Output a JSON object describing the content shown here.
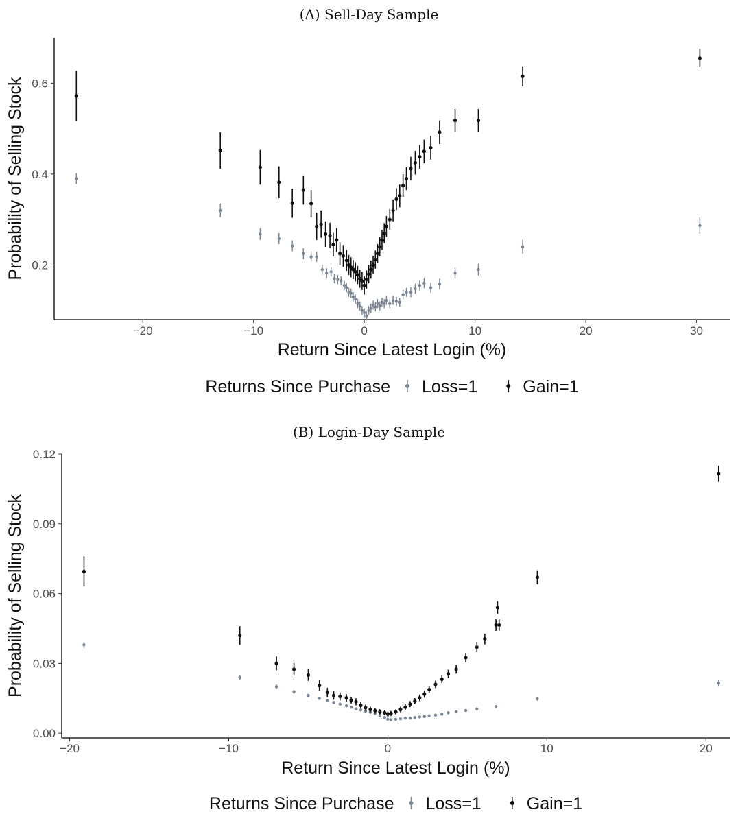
{
  "chart_data": [
    {
      "type": "scatter",
      "title": "(A) Sell-Day Sample",
      "xlabel": "Return Since Latest Login (%)",
      "ylabel": "Probability of Selling Stock",
      "xlim": [
        -28,
        33
      ],
      "ylim": [
        0.08,
        0.7
      ],
      "xticks": [
        -20,
        -10,
        0,
        10,
        20,
        30
      ],
      "xtick_labels": [
        "−20",
        "−10",
        "0",
        "10",
        "20",
        "30"
      ],
      "yticks": [
        0.2,
        0.4,
        0.6
      ],
      "ytick_labels": [
        "0.2",
        "0.4",
        "0.6"
      ],
      "grid": false,
      "legend": {
        "title": "Returns Since Purchase",
        "placement": "bottom",
        "entries": [
          "Loss=1",
          "Gain=1"
        ]
      },
      "series": [
        {
          "name": "Loss=1",
          "color": "#7a8694",
          "points": [
            [
              -26,
              0.39,
              0.012
            ],
            [
              -13,
              0.32,
              0.015
            ],
            [
              -9.4,
              0.268,
              0.013
            ],
            [
              -7.7,
              0.258,
              0.012
            ],
            [
              -6.5,
              0.242,
              0.012
            ],
            [
              -5.5,
              0.225,
              0.012
            ],
            [
              -4.8,
              0.218,
              0.011
            ],
            [
              -4.3,
              0.218,
              0.011
            ],
            [
              -3.8,
              0.19,
              0.011
            ],
            [
              -3.4,
              0.182,
              0.011
            ],
            [
              -3.0,
              0.185,
              0.01
            ],
            [
              -2.7,
              0.17,
              0.01
            ],
            [
              -2.4,
              0.168,
              0.01
            ],
            [
              -2.1,
              0.165,
              0.01
            ],
            [
              -1.8,
              0.155,
              0.01
            ],
            [
              -1.6,
              0.15,
              0.01
            ],
            [
              -1.4,
              0.14,
              0.01
            ],
            [
              -1.2,
              0.138,
              0.01
            ],
            [
              -1.0,
              0.13,
              0.01
            ],
            [
              -0.8,
              0.125,
              0.01
            ],
            [
              -0.6,
              0.115,
              0.01
            ],
            [
              -0.4,
              0.11,
              0.01
            ],
            [
              -0.2,
              0.1,
              0.01
            ],
            [
              0.0,
              0.095,
              0.01
            ],
            [
              0.2,
              0.088,
              0.01
            ],
            [
              0.4,
              0.1,
              0.01
            ],
            [
              0.6,
              0.105,
              0.01
            ],
            [
              0.8,
              0.112,
              0.01
            ],
            [
              1.0,
              0.108,
              0.01
            ],
            [
              1.2,
              0.115,
              0.01
            ],
            [
              1.4,
              0.11,
              0.01
            ],
            [
              1.6,
              0.118,
              0.01
            ],
            [
              1.8,
              0.115,
              0.01
            ],
            [
              2.0,
              0.122,
              0.01
            ],
            [
              2.3,
              0.115,
              0.01
            ],
            [
              2.6,
              0.122,
              0.01
            ],
            [
              2.9,
              0.12,
              0.01
            ],
            [
              3.2,
              0.118,
              0.01
            ],
            [
              3.5,
              0.135,
              0.01
            ],
            [
              3.8,
              0.14,
              0.01
            ],
            [
              4.2,
              0.14,
              0.011
            ],
            [
              4.6,
              0.148,
              0.011
            ],
            [
              5.0,
              0.155,
              0.011
            ],
            [
              5.4,
              0.16,
              0.011
            ],
            [
              6.0,
              0.15,
              0.011
            ],
            [
              6.8,
              0.158,
              0.012
            ],
            [
              8.2,
              0.182,
              0.012
            ],
            [
              10.3,
              0.19,
              0.013
            ],
            [
              14.3,
              0.24,
              0.015
            ],
            [
              30.3,
              0.287,
              0.018
            ]
          ]
        },
        {
          "name": "Gain=1",
          "color": "#111111",
          "points": [
            [
              -26,
              0.572,
              0.055
            ],
            [
              -13,
              0.452,
              0.04
            ],
            [
              -9.4,
              0.415,
              0.038
            ],
            [
              -7.7,
              0.382,
              0.035
            ],
            [
              -6.5,
              0.336,
              0.032
            ],
            [
              -5.5,
              0.365,
              0.032
            ],
            [
              -4.8,
              0.335,
              0.03
            ],
            [
              -4.3,
              0.285,
              0.03
            ],
            [
              -3.9,
              0.29,
              0.03
            ],
            [
              -3.5,
              0.268,
              0.028
            ],
            [
              -3.1,
              0.265,
              0.028
            ],
            [
              -2.8,
              0.245,
              0.026
            ],
            [
              -2.5,
              0.255,
              0.026
            ],
            [
              -2.2,
              0.225,
              0.025
            ],
            [
              -1.9,
              0.22,
              0.024
            ],
            [
              -1.6,
              0.21,
              0.023
            ],
            [
              -1.4,
              0.2,
              0.022
            ],
            [
              -1.2,
              0.195,
              0.022
            ],
            [
              -1.0,
              0.19,
              0.021
            ],
            [
              -0.8,
              0.185,
              0.021
            ],
            [
              -0.6,
              0.178,
              0.02
            ],
            [
              -0.4,
              0.17,
              0.02
            ],
            [
              -0.2,
              0.165,
              0.02
            ],
            [
              0.0,
              0.155,
              0.02
            ],
            [
              0.2,
              0.168,
              0.02
            ],
            [
              0.4,
              0.18,
              0.02
            ],
            [
              0.6,
              0.19,
              0.02
            ],
            [
              0.8,
              0.2,
              0.02
            ],
            [
              1.0,
              0.212,
              0.02
            ],
            [
              1.2,
              0.225,
              0.021
            ],
            [
              1.4,
              0.24,
              0.021
            ],
            [
              1.6,
              0.255,
              0.022
            ],
            [
              1.8,
              0.27,
              0.022
            ],
            [
              2.0,
              0.285,
              0.023
            ],
            [
              2.3,
              0.3,
              0.023
            ],
            [
              2.6,
              0.32,
              0.024
            ],
            [
              2.9,
              0.345,
              0.024
            ],
            [
              3.2,
              0.352,
              0.025
            ],
            [
              3.5,
              0.375,
              0.025
            ],
            [
              3.8,
              0.39,
              0.025
            ],
            [
              4.2,
              0.412,
              0.026
            ],
            [
              4.6,
              0.425,
              0.026
            ],
            [
              5.0,
              0.438,
              0.026
            ],
            [
              5.4,
              0.45,
              0.026
            ],
            [
              6.0,
              0.458,
              0.026
            ],
            [
              6.8,
              0.492,
              0.026
            ],
            [
              8.2,
              0.518,
              0.025
            ],
            [
              10.3,
              0.518,
              0.025
            ],
            [
              14.3,
              0.615,
              0.022
            ],
            [
              30.3,
              0.655,
              0.02
            ]
          ]
        }
      ]
    },
    {
      "type": "scatter",
      "title": "(B) Login-Day Sample",
      "xlabel": "Return Since Latest Login (%)",
      "ylabel": "Probability of Selling Stock",
      "xlim": [
        -20.5,
        21.5
      ],
      "ylim": [
        -0.002,
        0.12
      ],
      "xticks": [
        -20,
        -10,
        0,
        10,
        20
      ],
      "xtick_labels": [
        "−20",
        "−10",
        "0",
        "10",
        "20"
      ],
      "yticks": [
        0.0,
        0.03,
        0.06,
        0.09,
        0.12
      ],
      "ytick_labels": [
        "0.00",
        "0.03",
        "0.06",
        "0.09",
        "0.12"
      ],
      "grid": false,
      "legend": {
        "title": "Returns Since Purchase",
        "placement": "bottom",
        "entries": [
          "Loss=1",
          "Gain=1"
        ]
      },
      "series": [
        {
          "name": "Loss=1",
          "color": "#7a8694",
          "points": [
            [
              -19.1,
              0.038,
              0.0013
            ],
            [
              -9.3,
              0.024,
              0.001
            ],
            [
              -7.0,
              0.02,
              0.0009
            ],
            [
              -5.9,
              0.0178,
              0.0008
            ],
            [
              -5.0,
              0.0162,
              0.0008
            ],
            [
              -4.3,
              0.015,
              0.0007
            ],
            [
              -3.8,
              0.014,
              0.0007
            ],
            [
              -3.4,
              0.0132,
              0.0007
            ],
            [
              -3.0,
              0.0125,
              0.0006
            ],
            [
              -2.6,
              0.0118,
              0.0006
            ],
            [
              -2.3,
              0.0112,
              0.0006
            ],
            [
              -2.0,
              0.0105,
              0.0006
            ],
            [
              -1.7,
              0.01,
              0.0006
            ],
            [
              -1.4,
              0.0095,
              0.0005
            ],
            [
              -1.1,
              0.009,
              0.0005
            ],
            [
              -0.8,
              0.0085,
              0.0005
            ],
            [
              -0.5,
              0.0075,
              0.0005
            ],
            [
              -0.2,
              0.0068,
              0.0005
            ],
            [
              0.0,
              0.006,
              0.0005
            ],
            [
              0.2,
              0.0058,
              0.0005
            ],
            [
              0.5,
              0.006,
              0.0005
            ],
            [
              0.8,
              0.0062,
              0.0005
            ],
            [
              1.1,
              0.0065,
              0.0005
            ],
            [
              1.4,
              0.0065,
              0.0005
            ],
            [
              1.7,
              0.0068,
              0.0005
            ],
            [
              2.0,
              0.007,
              0.0005
            ],
            [
              2.3,
              0.0072,
              0.0005
            ],
            [
              2.6,
              0.0075,
              0.0005
            ],
            [
              3.0,
              0.0078,
              0.0005
            ],
            [
              3.4,
              0.0082,
              0.0005
            ],
            [
              3.8,
              0.0088,
              0.0005
            ],
            [
              4.3,
              0.0092,
              0.0006
            ],
            [
              4.9,
              0.0098,
              0.0006
            ],
            [
              5.6,
              0.0105,
              0.0006
            ],
            [
              6.8,
              0.0115,
              0.0006
            ],
            [
              9.4,
              0.0148,
              0.0008
            ],
            [
              20.8,
              0.0215,
              0.0012
            ]
          ]
        },
        {
          "name": "Gain=1",
          "color": "#111111",
          "points": [
            [
              -19.1,
              0.0695,
              0.0065
            ],
            [
              -9.3,
              0.042,
              0.004
            ],
            [
              -7.0,
              0.03,
              0.003
            ],
            [
              -5.9,
              0.0275,
              0.0027
            ],
            [
              -5.0,
              0.025,
              0.0025
            ],
            [
              -4.3,
              0.0205,
              0.0022
            ],
            [
              -3.8,
              0.0175,
              0.002
            ],
            [
              -3.4,
              0.0162,
              0.0018
            ],
            [
              -3.0,
              0.0158,
              0.0017
            ],
            [
              -2.6,
              0.0152,
              0.0016
            ],
            [
              -2.3,
              0.0142,
              0.0015
            ],
            [
              -2.0,
              0.0135,
              0.0015
            ],
            [
              -1.7,
              0.012,
              0.0014
            ],
            [
              -1.4,
              0.011,
              0.0013
            ],
            [
              -1.1,
              0.0102,
              0.0012
            ],
            [
              -0.8,
              0.0097,
              0.0012
            ],
            [
              -0.5,
              0.0092,
              0.0011
            ],
            [
              -0.2,
              0.0088,
              0.0011
            ],
            [
              0.0,
              0.0082,
              0.0011
            ],
            [
              0.2,
              0.0085,
              0.0011
            ],
            [
              0.5,
              0.0092,
              0.0011
            ],
            [
              0.8,
              0.0102,
              0.0012
            ],
            [
              1.1,
              0.0112,
              0.0012
            ],
            [
              1.4,
              0.0125,
              0.0013
            ],
            [
              1.7,
              0.0138,
              0.0013
            ],
            [
              2.0,
              0.0152,
              0.0014
            ],
            [
              2.3,
              0.0168,
              0.0015
            ],
            [
              2.6,
              0.0188,
              0.0015
            ],
            [
              3.0,
              0.021,
              0.0016
            ],
            [
              3.4,
              0.0232,
              0.0017
            ],
            [
              3.8,
              0.0255,
              0.0018
            ],
            [
              4.3,
              0.0275,
              0.0019
            ],
            [
              4.9,
              0.0325,
              0.002
            ],
            [
              5.6,
              0.037,
              0.0022
            ],
            [
              6.1,
              0.0405,
              0.0023
            ],
            [
              6.8,
              0.0465,
              0.0025
            ],
            [
              7.0,
              0.0465,
              0.0025
            ],
            [
              6.9,
              0.054,
              0.0027
            ],
            [
              9.4,
              0.067,
              0.003
            ],
            [
              20.8,
              0.1115,
              0.0035
            ]
          ]
        }
      ]
    }
  ]
}
